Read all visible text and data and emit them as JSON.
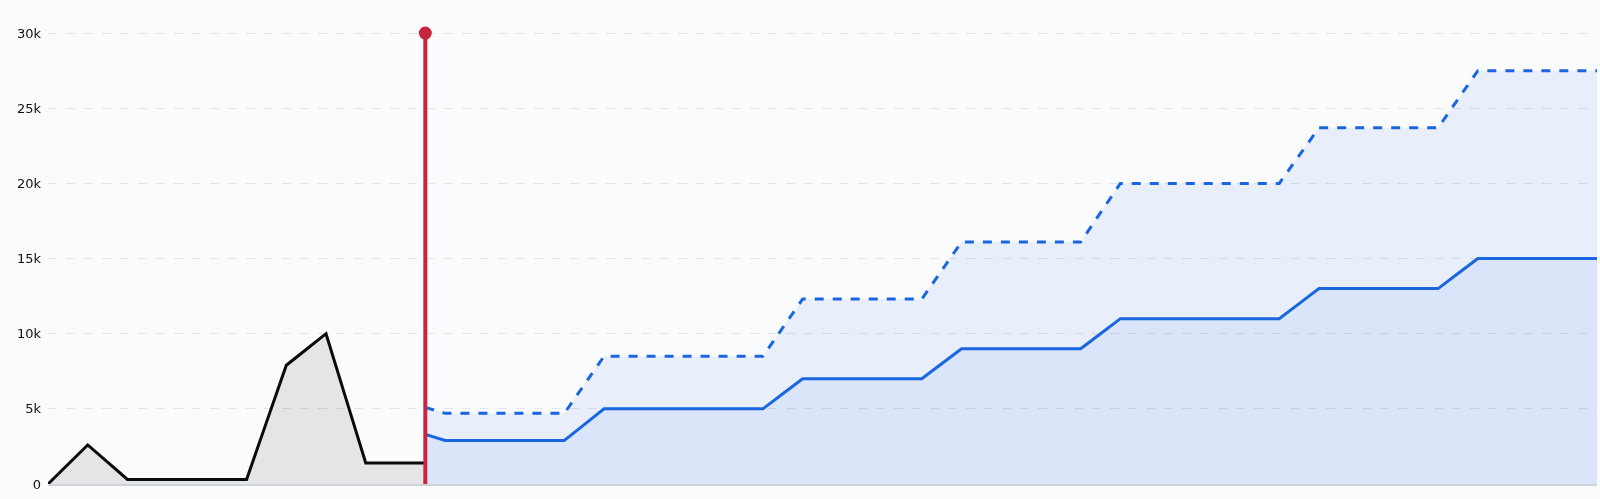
{
  "chart_data": {
    "type": "area",
    "categories": [
      null,
      null,
      null,
      null,
      null,
      null,
      null,
      null,
      null,
      null,
      null,
      null,
      null,
      null,
      null,
      null,
      null,
      null,
      null,
      null,
      null,
      null,
      null,
      null,
      null,
      null,
      null,
      null,
      null,
      null,
      null,
      null,
      null,
      null,
      null,
      null,
      null,
      null,
      null,
      null,
      null,
      null,
      null,
      null,
      null,
      null,
      null,
      null,
      null,
      null,
      null,
      null,
      null,
      null,
      null,
      null,
      null,
      null,
      null,
      null,
      null,
      null,
      null,
      null,
      null,
      null,
      null,
      null,
      null,
      null,
      null,
      null,
      null,
      null,
      null,
      null,
      null,
      null,
      null
    ],
    "ylim": [
      0,
      32200
    ],
    "yticks": [
      0,
      {
        "value": 5000,
        "label": "5k"
      },
      {
        "value": 10000,
        "label": "10k"
      },
      {
        "value": 15000,
        "label": "15k"
      },
      {
        "value": 20000,
        "label": "20k"
      },
      {
        "value": 25000,
        "label": "25k"
      },
      {
        "value": 30000,
        "label": "30k"
      }
    ],
    "grid": "y",
    "series": [
      {
        "color": "#0b0b0b",
        "line_style": "solid",
        "values": [
          0,
          1300,
          2600,
          1450,
          300,
          300,
          300,
          300,
          300,
          300,
          300,
          4100,
          7900,
          8950,
          10000,
          5700,
          1400,
          1400,
          1400,
          1400,
          null,
          null,
          null,
          null,
          null,
          null,
          null,
          null,
          null,
          null,
          null,
          null,
          null,
          null,
          null,
          null,
          null,
          null,
          null,
          null,
          null,
          null,
          null,
          null,
          null,
          null,
          null,
          null,
          null,
          null,
          null,
          null,
          null,
          null,
          null,
          null,
          null,
          null,
          null,
          null,
          null,
          null,
          null,
          null,
          null,
          null,
          null,
          null,
          null,
          null,
          null,
          null,
          null,
          null,
          null,
          null,
          null,
          null,
          null
        ]
      },
      {
        "color": "#1a66e0",
        "line_style": "solid",
        "values": [
          null,
          null,
          null,
          null,
          null,
          null,
          null,
          null,
          null,
          null,
          null,
          null,
          null,
          null,
          null,
          null,
          null,
          null,
          null,
          3300,
          2900,
          2900,
          2900,
          2900,
          2900,
          2900,
          2900,
          3950,
          5000,
          5000,
          5000,
          5000,
          5000,
          5000,
          5000,
          5000,
          5000,
          6000,
          7000,
          7000,
          7000,
          7000,
          7000,
          7000,
          7000,
          8000,
          9000,
          9000,
          9000,
          9000,
          9000,
          9000,
          9000,
          10000,
          11000,
          11000,
          11000,
          11000,
          11000,
          11000,
          11000,
          11000,
          11000,
          12000,
          13000,
          13000,
          13000,
          13000,
          13000,
          13000,
          13000,
          14000,
          15000,
          15000,
          15000,
          15000,
          15000,
          15000,
          15000
        ]
      },
      {
        "color": "#1a66e0",
        "line_style": "dashed",
        "values": [
          null,
          null,
          null,
          null,
          null,
          null,
          null,
          null,
          null,
          null,
          null,
          null,
          null,
          null,
          null,
          null,
          null,
          null,
          null,
          5100,
          4700,
          4700,
          4700,
          4700,
          4700,
          4700,
          4700,
          6600,
          8500,
          8500,
          8500,
          8500,
          8500,
          8500,
          8500,
          8500,
          8500,
          10400,
          12300,
          12300,
          12300,
          12300,
          12300,
          12300,
          12300,
          14200,
          16100,
          16100,
          16100,
          16100,
          16100,
          16100,
          16100,
          18050,
          20000,
          20000,
          20000,
          20000,
          20000,
          20000,
          20000,
          20000,
          20000,
          21850,
          23700,
          23700,
          23700,
          23700,
          23700,
          23700,
          23700,
          25600,
          27500,
          27500,
          27500,
          27500,
          27500,
          27500,
          27500
        ]
      }
    ]
  }
}
